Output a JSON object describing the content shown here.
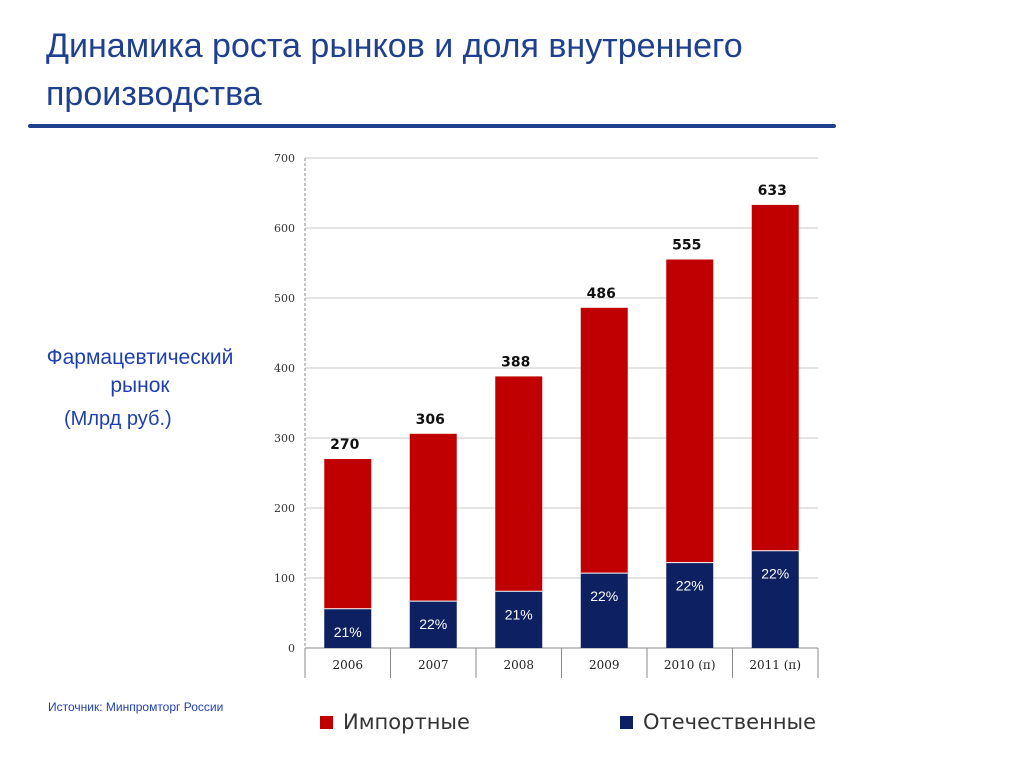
{
  "slide": {
    "title": "Динамика роста рынков и доля внутреннего производства",
    "side_label": "Фармацевтический рынок",
    "side_unit": "(Млрд руб.)",
    "source": "Источник: Минпромторг России"
  },
  "colors": {
    "import": "#c00000",
    "domestic": "#0c2062",
    "accent": "#1f3f8f"
  },
  "chart_data": {
    "type": "bar",
    "stacked": true,
    "categories": [
      "2006",
      "2007",
      "2008",
      "2009",
      "2010 (п)",
      "2011 (п)"
    ],
    "totals": [
      "270",
      "306",
      "388",
      "486",
      "555",
      "633"
    ],
    "shares": [
      "21%",
      "22%",
      "21%",
      "22%",
      "22%",
      "22%"
    ],
    "series": [
      {
        "name": "Отечественные",
        "values": [
          56,
          67,
          81,
          107,
          122,
          139
        ]
      },
      {
        "name": "Импортные",
        "values": [
          214,
          239,
          307,
          379,
          433,
          494
        ]
      }
    ],
    "yticks": [
      "0",
      "100",
      "200",
      "300",
      "400",
      "500",
      "600",
      "700"
    ],
    "ylim": [
      0,
      700
    ],
    "grid": true,
    "legend": "bottom"
  }
}
